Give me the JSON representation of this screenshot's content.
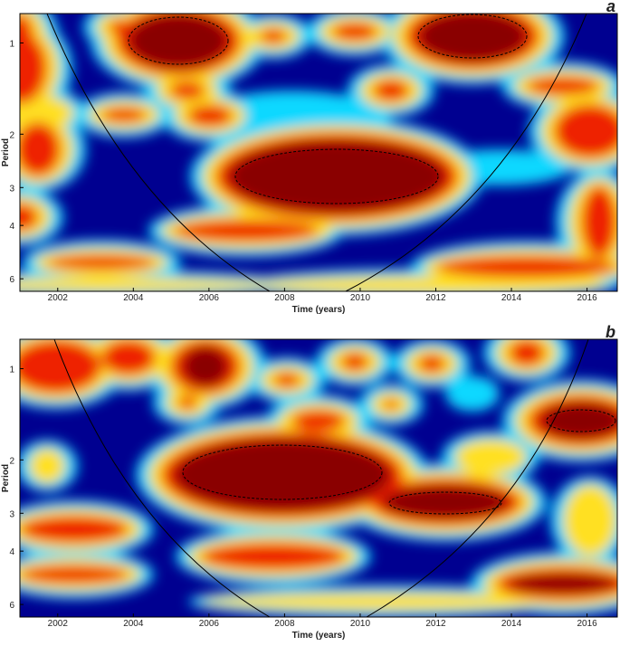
{
  "chart_data": [
    {
      "type": "heatmap",
      "panel_label": "a",
      "xlabel": "Time (years)",
      "ylabel": "Period",
      "xlim": [
        2001,
        2016.8
      ],
      "xticks": [
        2002,
        2004,
        2006,
        2008,
        2010,
        2012,
        2014,
        2016
      ],
      "ylim": [
        0.8,
        6.6
      ],
      "yticks": [
        1,
        2,
        3,
        4,
        6
      ],
      "y_scale": "log",
      "y_reversed": true
    },
    {
      "type": "heatmap",
      "panel_label": "b",
      "xlabel": "Time (years)",
      "ylabel": "Period",
      "xlim": [
        2001,
        2016.8
      ],
      "xticks": [
        2002,
        2004,
        2006,
        2008,
        2010,
        2012,
        2014,
        2016
      ],
      "ylim": [
        0.8,
        6.6
      ],
      "yticks": [
        1,
        2,
        3,
        4,
        6
      ],
      "y_scale": "log",
      "y_reversed": true
    }
  ]
}
